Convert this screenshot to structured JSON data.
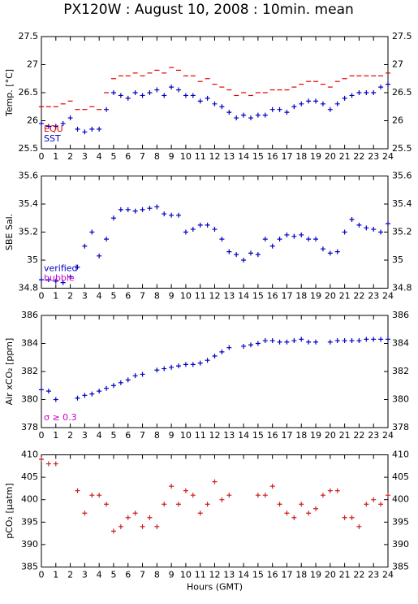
{
  "title": "PX120W : August 10, 2008 : 10min. mean",
  "chart_data": [
    {
      "type": "scatter",
      "ylabel": "Temp. [°C]",
      "xlim": [
        0,
        24
      ],
      "xticks": [
        0,
        1,
        2,
        3,
        4,
        5,
        6,
        7,
        8,
        9,
        10,
        11,
        12,
        13,
        14,
        15,
        16,
        17,
        18,
        19,
        20,
        21,
        22,
        23,
        24
      ],
      "ylim": [
        25.5,
        27.5
      ],
      "yticks": [
        25.5,
        26,
        26.5,
        27,
        27.5
      ],
      "x": [
        0,
        0.5,
        1,
        1.5,
        2,
        2.5,
        3,
        3.5,
        4,
        4.5,
        5,
        5.5,
        6,
        6.5,
        7,
        7.5,
        8,
        8.5,
        9,
        9.5,
        10,
        10.5,
        11,
        11.5,
        12,
        12.5,
        13,
        13.5,
        14,
        14.5,
        15,
        15.5,
        16,
        16.5,
        17,
        17.5,
        18,
        18.5,
        19,
        19.5,
        20,
        20.5,
        21,
        21.5,
        22,
        22.5,
        23,
        23.5,
        24
      ],
      "series": [
        {
          "name": "EQU",
          "color": "#e00000",
          "marker": "dash",
          "values": [
            26.25,
            26.25,
            26.25,
            26.3,
            26.35,
            26.2,
            26.2,
            26.25,
            26.2,
            26.5,
            26.75,
            26.8,
            26.8,
            26.85,
            26.8,
            26.85,
            26.9,
            26.85,
            26.95,
            26.9,
            26.8,
            26.8,
            26.7,
            26.75,
            26.65,
            26.6,
            26.55,
            26.45,
            26.5,
            26.45,
            26.5,
            26.5,
            26.55,
            26.55,
            26.55,
            26.6,
            26.65,
            26.7,
            26.7,
            26.65,
            26.6,
            26.7,
            26.75,
            26.8,
            26.8,
            26.8,
            26.8,
            26.8,
            26.85
          ]
        },
        {
          "name": "SST",
          "color": "#0000c0",
          "marker": "plus",
          "values": [
            25.95,
            25.9,
            25.9,
            25.95,
            26.05,
            25.85,
            25.8,
            25.85,
            25.85,
            26.2,
            26.5,
            26.45,
            26.4,
            26.5,
            26.45,
            26.5,
            26.55,
            26.45,
            26.6,
            26.55,
            26.45,
            26.45,
            26.35,
            26.4,
            26.3,
            26.25,
            26.15,
            26.05,
            26.1,
            26.05,
            26.1,
            26.1,
            26.2,
            26.2,
            26.15,
            26.25,
            26.3,
            26.35,
            26.35,
            26.3,
            26.2,
            26.3,
            26.4,
            26.45,
            26.5,
            26.5,
            26.5,
            26.6,
            26.65
          ]
        }
      ]
    },
    {
      "type": "scatter",
      "ylabel": "SBE Sal.",
      "xlim": [
        0,
        24
      ],
      "xticks": [
        0,
        1,
        2,
        3,
        4,
        5,
        6,
        7,
        8,
        9,
        10,
        11,
        12,
        13,
        14,
        15,
        16,
        17,
        18,
        19,
        20,
        21,
        22,
        23,
        24
      ],
      "ylim": [
        34.8,
        35.6
      ],
      "yticks": [
        34.8,
        35,
        35.2,
        35.4,
        35.6
      ],
      "x": [
        0,
        0.5,
        1,
        1.5,
        2,
        2.5,
        3,
        3.5,
        4,
        4.5,
        5,
        5.5,
        6,
        6.5,
        7,
        7.5,
        8,
        8.5,
        9,
        9.5,
        10,
        10.5,
        11,
        11.5,
        12,
        12.5,
        13,
        13.5,
        14,
        14.5,
        15,
        15.5,
        16,
        16.5,
        17,
        17.5,
        18,
        18.5,
        19,
        19.5,
        20,
        20.5,
        21,
        21.5,
        22,
        22.5,
        23,
        23.5,
        24
      ],
      "series": [
        {
          "name": "verified",
          "color": "#0000c0",
          "marker": "plus",
          "values": [
            34.86,
            34.86,
            34.85,
            34.84,
            34.88,
            34.95,
            35.1,
            35.2,
            35.03,
            35.15,
            35.3,
            35.36,
            35.36,
            35.35,
            35.36,
            35.37,
            35.38,
            35.33,
            35.32,
            35.32,
            35.2,
            35.22,
            35.25,
            35.25,
            35.22,
            35.15,
            35.06,
            35.04,
            35.0,
            35.05,
            35.04,
            35.15,
            35.1,
            35.15,
            35.18,
            35.17,
            35.18,
            35.15,
            35.15,
            35.08,
            35.05,
            35.06,
            35.2,
            35.29,
            35.25,
            35.23,
            35.22,
            35.2,
            35.26
          ]
        }
      ],
      "annotations": [
        {
          "text": "bubble",
          "color": "#cc00cc"
        }
      ]
    },
    {
      "type": "scatter",
      "ylabel": "Air xCO₂ [ppm]",
      "xlim": [
        0,
        24
      ],
      "xticks": [
        0,
        1,
        2,
        3,
        4,
        5,
        6,
        7,
        8,
        9,
        10,
        11,
        12,
        13,
        14,
        15,
        16,
        17,
        18,
        19,
        20,
        21,
        22,
        23,
        24
      ],
      "ylim": [
        378,
        386
      ],
      "yticks": [
        378,
        380,
        382,
        384,
        386
      ],
      "x": [
        0,
        0.5,
        1,
        1.5,
        2,
        2.5,
        3,
        3.5,
        4,
        4.5,
        5,
        5.5,
        6,
        6.5,
        7,
        7.5,
        8,
        8.5,
        9,
        9.5,
        10,
        10.5,
        11,
        11.5,
        12,
        12.5,
        13,
        13.5,
        14,
        14.5,
        15,
        15.5,
        16,
        16.5,
        17,
        17.5,
        18,
        18.5,
        19,
        19.5,
        20,
        20.5,
        21,
        21.5,
        22,
        22.5,
        23,
        23.5,
        24
      ],
      "series": [
        {
          "color": "#0000c0",
          "marker": "plus",
          "values": [
            380.7,
            380.6,
            380.0,
            null,
            null,
            380.1,
            380.3,
            380.4,
            380.6,
            380.8,
            381.0,
            381.2,
            381.4,
            381.7,
            381.8,
            null,
            382.1,
            382.2,
            382.3,
            382.4,
            382.5,
            382.5,
            382.6,
            382.8,
            383.1,
            383.4,
            383.7,
            null,
            383.8,
            383.9,
            384.0,
            384.2,
            384.2,
            384.1,
            384.1,
            384.2,
            384.3,
            384.1,
            384.1,
            null,
            384.1,
            384.2,
            384.2,
            384.2,
            384.2,
            384.3,
            384.3,
            384.3,
            384.3
          ]
        }
      ],
      "annotations": [
        {
          "text": "σ ≥ 0.3",
          "color": "#cc00cc"
        }
      ]
    },
    {
      "type": "scatter",
      "ylabel": "pCO₂ [μatm]",
      "xlabel": "Hours (GMT)",
      "xlim": [
        0,
        24
      ],
      "xticks": [
        0,
        1,
        2,
        3,
        4,
        5,
        6,
        7,
        8,
        9,
        10,
        11,
        12,
        13,
        14,
        15,
        16,
        17,
        18,
        19,
        20,
        21,
        22,
        23,
        24
      ],
      "ylim": [
        385,
        410
      ],
      "yticks": [
        385,
        390,
        395,
        400,
        405,
        410
      ],
      "x": [
        0,
        0.5,
        1,
        1.5,
        2,
        2.5,
        3,
        3.5,
        4,
        4.5,
        5,
        5.5,
        6,
        6.5,
        7,
        7.5,
        8,
        8.5,
        9,
        9.5,
        10,
        10.5,
        11,
        11.5,
        12,
        12.5,
        13,
        13.5,
        14,
        14.5,
        15,
        15.5,
        16,
        16.5,
        17,
        17.5,
        18,
        18.5,
        19,
        19.5,
        20,
        20.5,
        21,
        21.5,
        22,
        22.5,
        23,
        23.5,
        24
      ],
      "series": [
        {
          "color": "#cc2020",
          "marker": "plus",
          "values": [
            409,
            408,
            408,
            null,
            null,
            402,
            397,
            401,
            401,
            399,
            393,
            394,
            396,
            397,
            394,
            396,
            394,
            399,
            403,
            399,
            402,
            401,
            397,
            399,
            404,
            400,
            401,
            null,
            null,
            null,
            401,
            401,
            403,
            399,
            397,
            396,
            399,
            397,
            398,
            401,
            402,
            402,
            396,
            396,
            394,
            399,
            400,
            399,
            401
          ]
        }
      ]
    }
  ]
}
